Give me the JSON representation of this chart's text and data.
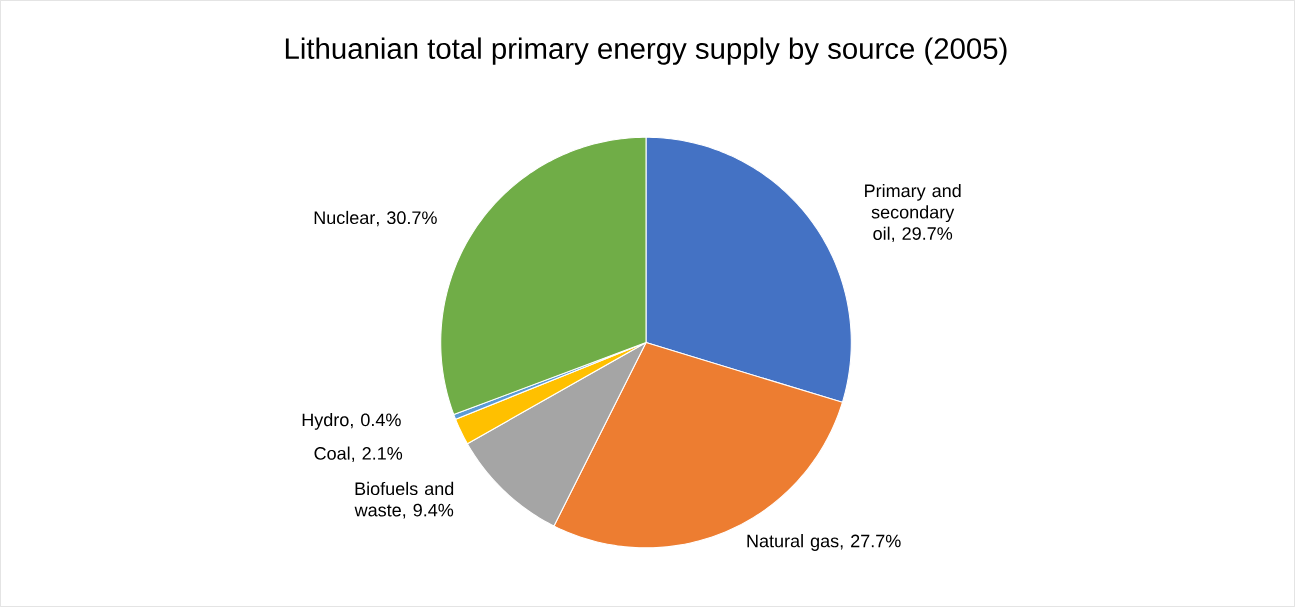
{
  "chart_data": {
    "type": "pie",
    "title": "Lithuanian total primary energy supply by source (2005)",
    "categories": [
      "Primary and secondary oil",
      "Natural gas",
      "Biofuels and waste",
      "Coal",
      "Hydro",
      "Nuclear"
    ],
    "values": [
      29.7,
      27.7,
      9.4,
      2.1,
      0.4,
      30.7
    ],
    "value_labels": [
      ", 29.7%",
      ", 27.7%",
      ", 9.4%",
      ", 2.1%",
      ", 0.4%",
      ", 30.7%"
    ],
    "colors": [
      "#4472c4",
      "#ed7d31",
      "#a5a5a5",
      "#ffc000",
      "#5b9bd5",
      "#70ad47"
    ]
  }
}
